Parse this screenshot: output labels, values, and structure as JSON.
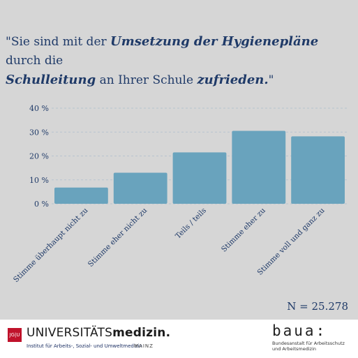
{
  "title": {
    "part1": "\"Sie sind mit der ",
    "em1": "Umsetzung der Hygienepläne",
    "part2": " durch die",
    "em2": "Schulleitung",
    "part3": " an Ihrer Schule ",
    "em3": "zufrieden.",
    "part4": "\""
  },
  "chart_data": {
    "type": "bar",
    "categories": [
      "Stimme überhaupt nicht zu",
      "Stimme eher nicht zu",
      "Teils / teils",
      "Stimme eher zu",
      "Stimme voll und ganz zu"
    ],
    "values": [
      6.8,
      13,
      21.5,
      30.5,
      28.2
    ],
    "yticks": [
      "0 %",
      "10 %",
      "20 %",
      "30 %",
      "40 %"
    ],
    "ytick_values": [
      0,
      10,
      20,
      30,
      40
    ],
    "ylim": [
      0,
      40
    ],
    "grid": true,
    "bar_color": "#69a3bd",
    "grid_color": "#b7c4cf"
  },
  "n_label": "N = 25.278",
  "footer": {
    "jgu_logo": "JG|U",
    "university": "UNIVERSITÄTS",
    "university_bold": "medizin.",
    "institute": "Institut für Arbeits-, Sozial- und Umweltmedizin",
    "city": "MAINZ",
    "baua_logo": "baua:",
    "baua_line1": "Bundesanstalt für Arbeitsschutz",
    "baua_line2": "und Arbeitsmedizin"
  }
}
